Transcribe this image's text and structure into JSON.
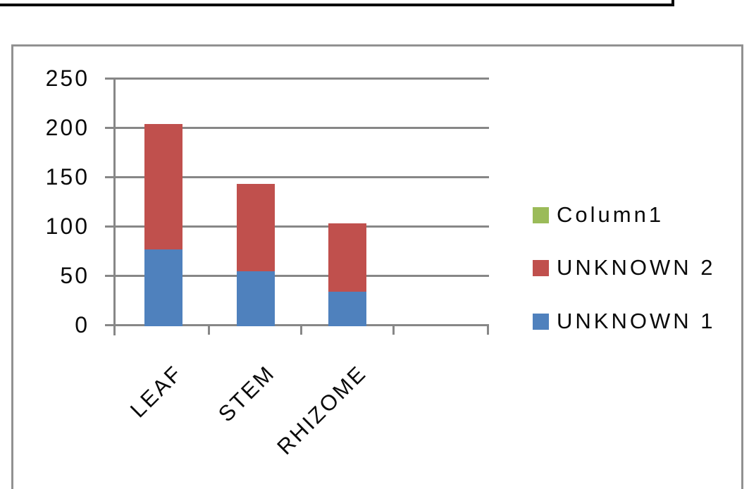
{
  "window": {
    "description": "partial black window border fragment at top of screenshot"
  },
  "chart_data": {
    "type": "bar",
    "subtype": "stacked-vertical",
    "title": "",
    "xlabel": "",
    "ylabel": "",
    "categories": [
      "LEAF",
      "STEM",
      "RHIZOME"
    ],
    "series": [
      {
        "name": "UNKNOWN 1",
        "color": "#4F81BD",
        "values": [
          78,
          56,
          35
        ]
      },
      {
        "name": "UNKNOWN 2",
        "color": "#C0504D",
        "values": [
          127,
          88,
          69
        ]
      },
      {
        "name": "Column1",
        "color": "#9BBB59",
        "values": [
          0,
          0,
          0
        ]
      }
    ],
    "stacked_totals": [
      205,
      144,
      104
    ],
    "y_ticks": [
      0,
      50,
      100,
      150,
      200,
      250
    ],
    "ylim": [
      0,
      250
    ],
    "grid": true,
    "x_label_rotation_deg": -45,
    "legend_position": "right",
    "legend_items": [
      {
        "label": "Column1",
        "color": "#9BBB59"
      },
      {
        "label": "UNKNOWN 2",
        "color": "#C0504D"
      },
      {
        "label": "UNKNOWN 1",
        "color": "#4F81BD"
      }
    ]
  },
  "colors": {
    "gridline": "#878787",
    "chart_border": "#919191",
    "top_frame_border": "#0a0a0a",
    "background": "#ffffff",
    "text": "#0a0a0a"
  }
}
